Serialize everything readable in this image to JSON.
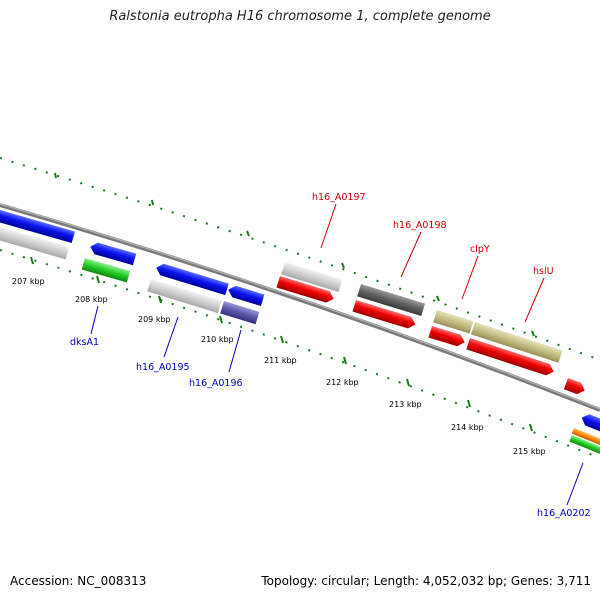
{
  "title": "Ralstonia eutropha H16 chromosome 1, complete genome",
  "footer": {
    "accession": "Accession: NC_008313",
    "summary": "Topology: circular; Length: 4,052,032 bp; Genes: 3,711"
  },
  "kbp_labels": [
    "207 kbp",
    "208 kbp",
    "209 kbp",
    "210 kbp",
    "211 kbp",
    "212 kbp",
    "213 kbp",
    "214 kbp",
    "215 kbp"
  ],
  "gene_labels": {
    "h16_A0197": "h16_A0197",
    "h16_A0198": "h16_A0198",
    "clpY": "clpY",
    "hslU": "hslU",
    "dksA1": "dksA1",
    "h16_A0195": "h16_A0195",
    "h16_A0196": "h16_A0196",
    "h16_A0202": "h16_A0202"
  },
  "colors": {
    "forward_label": "#cc0000",
    "reverse_label": "#0000bb",
    "tick": "#1a7a1a",
    "backbone": "#808080"
  }
}
